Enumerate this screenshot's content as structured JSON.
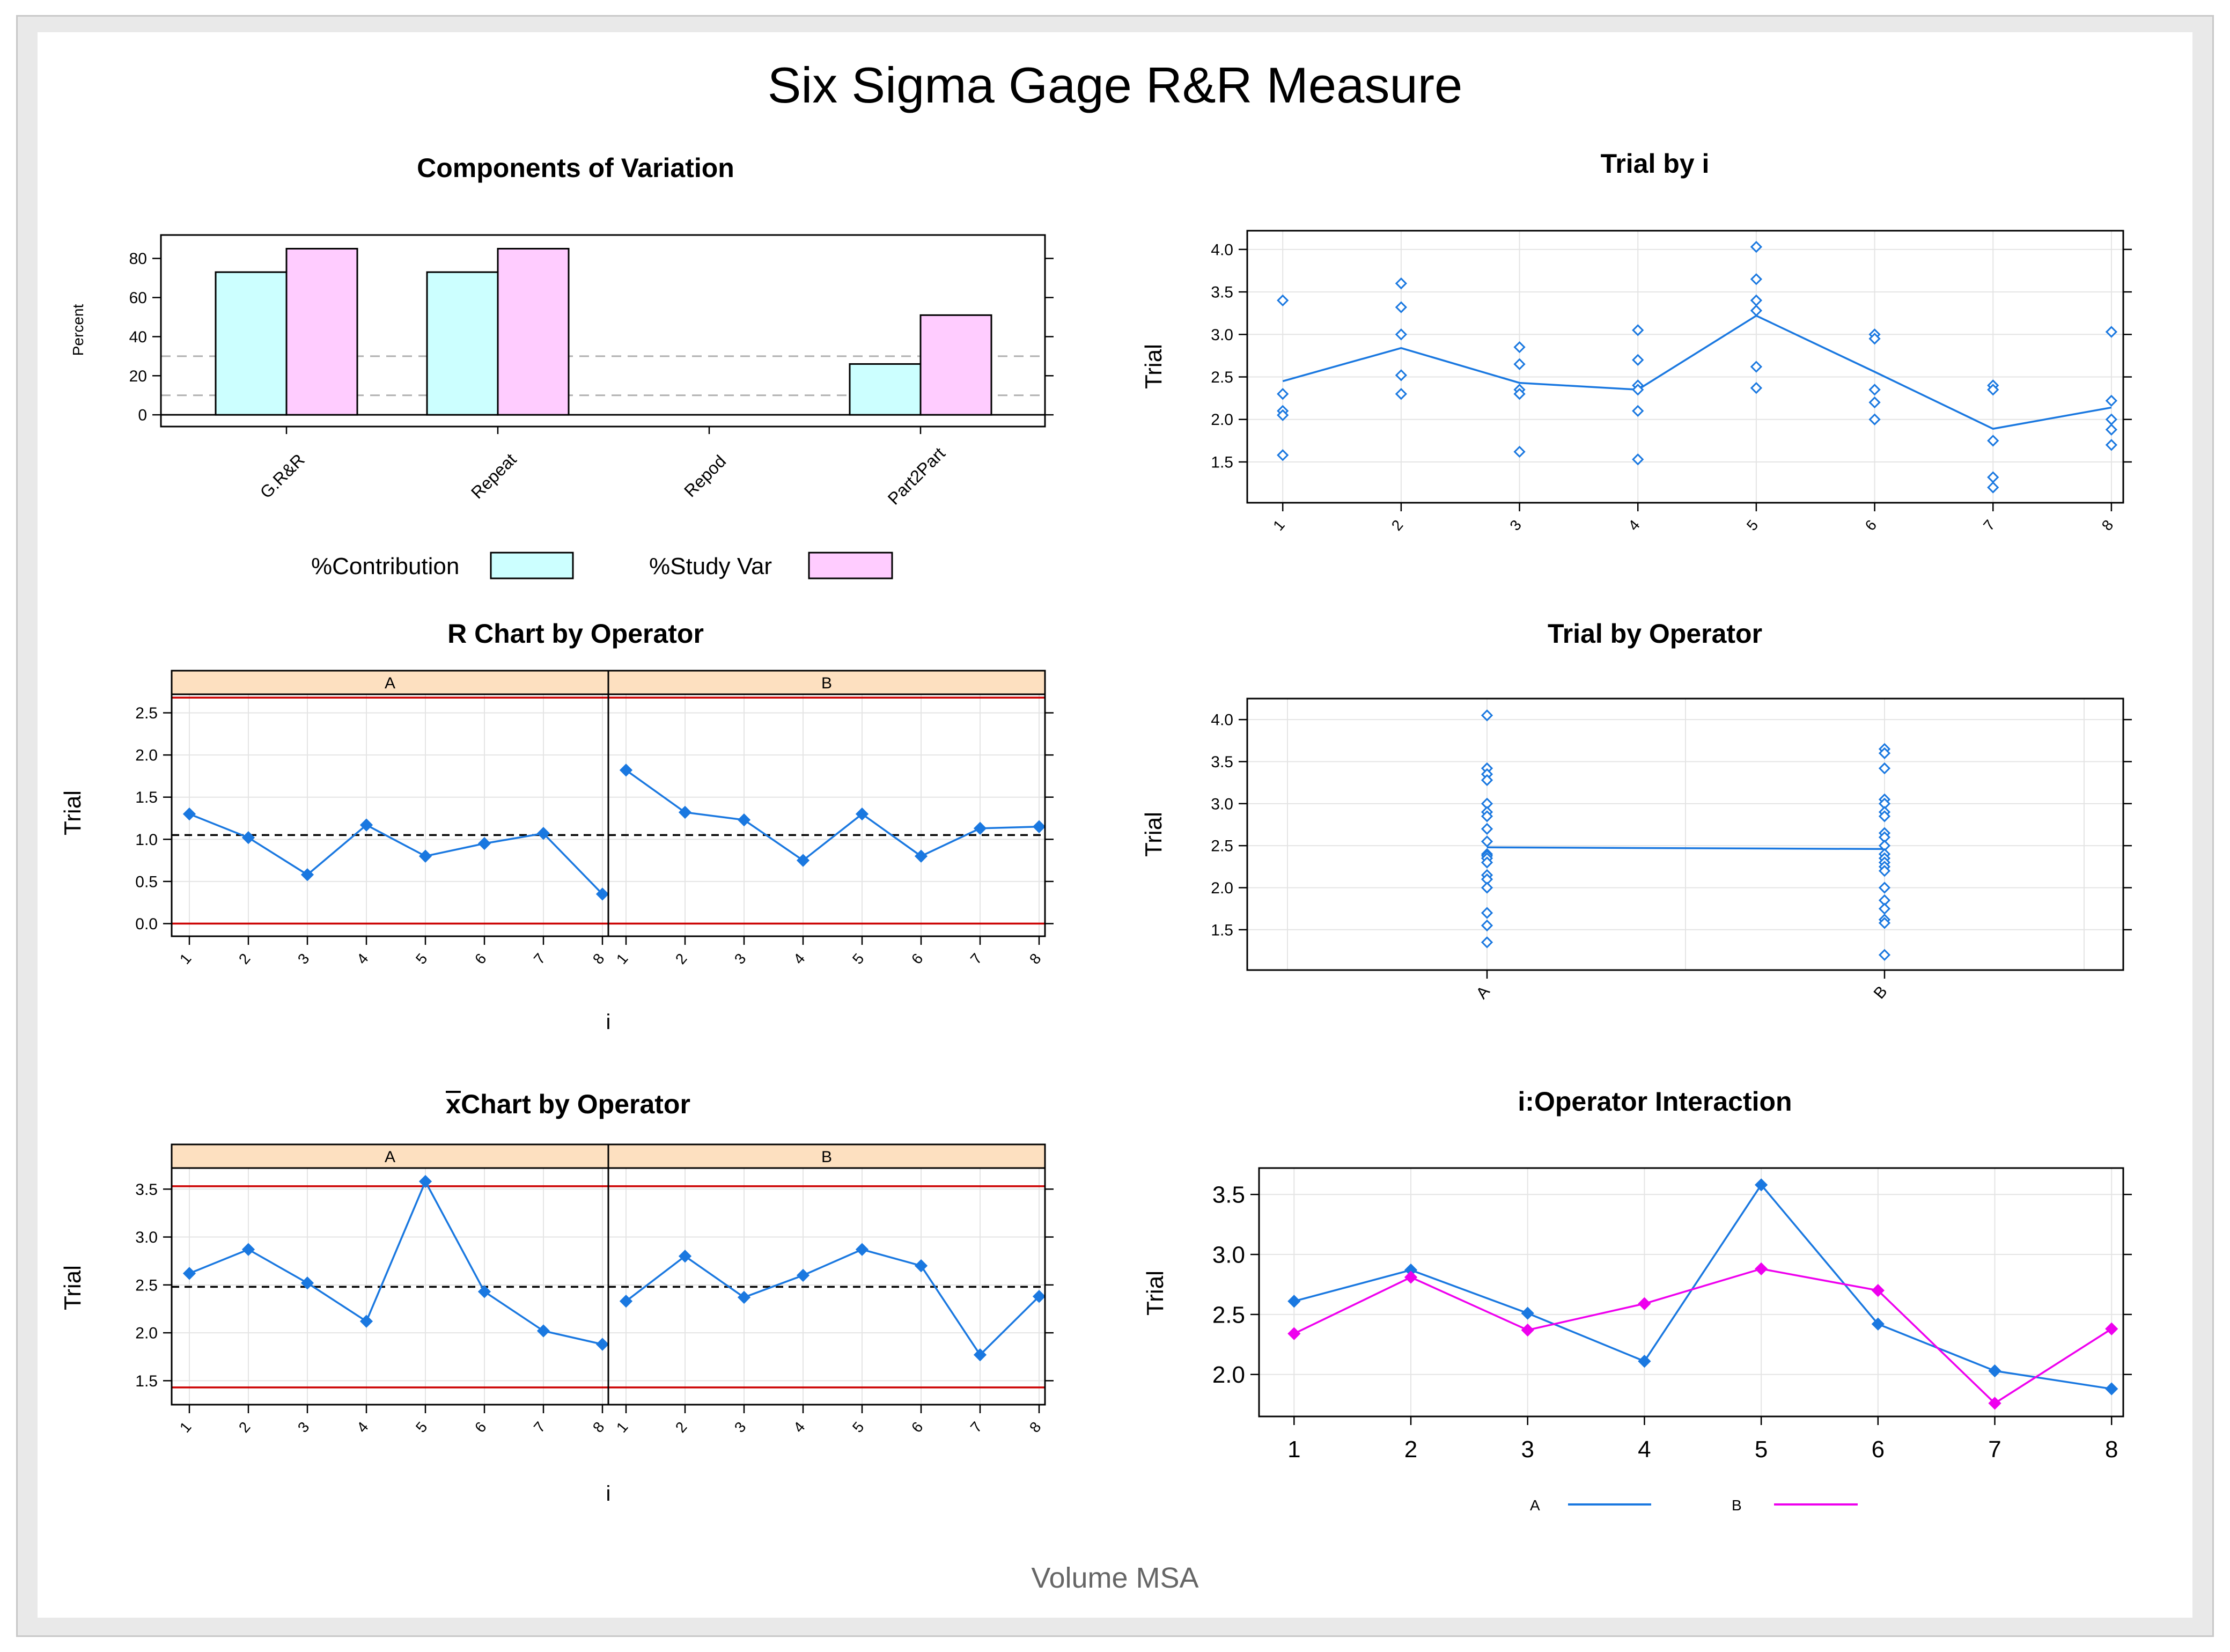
{
  "title": "Six Sigma Gage R&R Measure",
  "footer": "Volume MSA",
  "colors": {
    "blue": "#1a78e0",
    "magenta": "#ee00ee",
    "cyan": "#ccffff",
    "pink": "#ffccff",
    "red": "#cc0000",
    "strip": "#fde0c0"
  },
  "chart_data": [
    {
      "id": "components",
      "type": "bar",
      "title": "Components of Variation",
      "ylabel": "Percent",
      "categories": [
        "G.R&R",
        "Repeat",
        "Repod",
        "Part2Part"
      ],
      "series": [
        {
          "name": "%Contribution",
          "values": [
            73,
            73,
            0,
            26
          ]
        },
        {
          "name": "%Study Var",
          "values": [
            85,
            85,
            0,
            51
          ]
        }
      ],
      "yticks": [
        "0",
        "20",
        "40",
        "60",
        "80"
      ],
      "ylim": [
        -6,
        92
      ],
      "reference_lines": [
        10,
        30
      ],
      "legend": [
        "%Contribution",
        "%Study Var"
      ]
    },
    {
      "id": "trial-by-i",
      "type": "scatter",
      "title": "Trial by i",
      "ylabel": "Trial",
      "categories": [
        "1",
        "2",
        "3",
        "4",
        "5",
        "6",
        "7",
        "8"
      ],
      "points": [
        [
          3.4,
          2.3,
          2.1,
          2.05,
          1.58
        ],
        [
          3.6,
          3.32,
          3.0,
          2.52,
          2.3
        ],
        [
          2.85,
          2.65,
          2.35,
          2.3,
          1.62
        ],
        [
          3.05,
          2.7,
          2.4,
          2.35,
          2.1,
          1.53
        ],
        [
          4.03,
          3.65,
          3.4,
          3.28,
          2.62,
          2.37
        ],
        [
          3.0,
          2.95,
          2.35,
          2.2,
          2.0
        ],
        [
          2.4,
          2.35,
          1.75,
          1.32,
          1.2
        ],
        [
          3.03,
          2.22,
          2.0,
          1.88,
          1.7
        ]
      ],
      "means": [
        2.45,
        2.84,
        2.43,
        2.35,
        3.22,
        2.56,
        1.89,
        2.14
      ],
      "yticks": [
        "1.5",
        "2.0",
        "2.5",
        "3.0",
        "3.5",
        "4.0"
      ],
      "ylim": [
        1.02,
        4.22
      ]
    },
    {
      "id": "r-chart",
      "type": "line",
      "title": "R Chart by Operator",
      "ylabel": "Trial",
      "xlabel": "i",
      "panels": [
        {
          "label": "A",
          "values": [
            1.3,
            1.02,
            0.58,
            1.17,
            0.8,
            0.95,
            1.07,
            0.35
          ]
        },
        {
          "label": "B",
          "values": [
            1.82,
            1.32,
            1.23,
            0.75,
            1.3,
            0.8,
            1.13,
            1.15
          ]
        }
      ],
      "categories": [
        "1",
        "2",
        "3",
        "4",
        "5",
        "6",
        "7",
        "8"
      ],
      "center": 1.05,
      "ucl": 2.68,
      "lcl": 0.0,
      "yticks": [
        "0.0",
        "0.5",
        "1.0",
        "1.5",
        "2.0",
        "2.5"
      ],
      "ylim": [
        -0.15,
        2.72
      ]
    },
    {
      "id": "trial-by-operator",
      "type": "scatter",
      "title": "Trial by Operator",
      "ylabel": "Trial",
      "categories": [
        "A",
        "B"
      ],
      "points": [
        [
          4.05,
          3.42,
          3.35,
          3.28,
          3.0,
          2.9,
          2.85,
          2.7,
          2.55,
          2.4,
          2.38,
          2.35,
          2.3,
          2.15,
          2.1,
          2.0,
          1.7,
          1.55,
          1.35
        ],
        [
          3.65,
          3.6,
          3.42,
          3.05,
          3.0,
          2.9,
          2.85,
          2.65,
          2.6,
          2.5,
          2.4,
          2.35,
          2.3,
          2.25,
          2.2,
          2.0,
          1.85,
          1.75,
          1.62,
          1.58,
          1.2
        ]
      ],
      "means": [
        2.48,
        2.46
      ],
      "yticks": [
        "1.5",
        "2.0",
        "2.5",
        "3.0",
        "3.5",
        "4.0"
      ],
      "ylim": [
        1.02,
        4.25
      ]
    },
    {
      "id": "xbar-chart",
      "type": "line",
      "title": "Chart by Operator",
      "title_symbol": "x",
      "ylabel": "Trial",
      "xlabel": "i",
      "panels": [
        {
          "label": "A",
          "values": [
            2.62,
            2.87,
            2.52,
            2.12,
            3.58,
            2.43,
            2.02,
            1.88
          ]
        },
        {
          "label": "B",
          "values": [
            2.33,
            2.8,
            2.37,
            2.6,
            2.87,
            2.7,
            1.77,
            2.38
          ]
        }
      ],
      "categories": [
        "1",
        "2",
        "3",
        "4",
        "5",
        "6",
        "7",
        "8"
      ],
      "center": 2.48,
      "ucl": 3.53,
      "lcl": 1.43,
      "yticks": [
        "1.5",
        "2.0",
        "2.5",
        "3.0",
        "3.5"
      ],
      "ylim": [
        1.25,
        3.72
      ]
    },
    {
      "id": "interaction",
      "type": "line",
      "title": "i:Operator Interaction",
      "ylabel": "Trial",
      "categories": [
        "1",
        "2",
        "3",
        "4",
        "5",
        "6",
        "7",
        "8"
      ],
      "series": [
        {
          "name": "A",
          "values": [
            2.61,
            2.87,
            2.51,
            2.11,
            3.58,
            2.42,
            2.03,
            1.88
          ]
        },
        {
          "name": "B",
          "values": [
            2.34,
            2.81,
            2.37,
            2.59,
            2.88,
            2.7,
            1.76,
            2.38
          ]
        }
      ],
      "yticks": [
        "2.0",
        "2.5",
        "3.0",
        "3.5"
      ],
      "ylim": [
        1.65,
        3.72
      ],
      "legend": [
        "A",
        "B"
      ]
    }
  ]
}
